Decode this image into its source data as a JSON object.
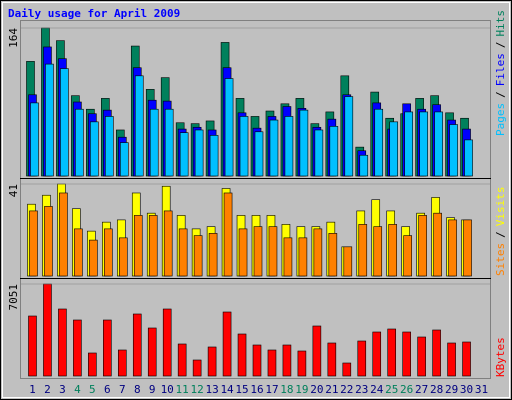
{
  "chart_data": [
    {
      "type": "bar",
      "title": "Daily usage for April 2009",
      "legend_separator": "/",
      "ylim": [
        0,
        164
      ],
      "yticks": [
        164
      ],
      "series": [
        {
          "name": "Hits",
          "color": "#00805c",
          "values": [
            127,
            164,
            150,
            89,
            74,
            86,
            51,
            144,
            96,
            109,
            59,
            58,
            61,
            148,
            86,
            66,
            72,
            80,
            86,
            58,
            71,
            111,
            32,
            93,
            64,
            69,
            86,
            89,
            70,
            64,
            null
          ]
        },
        {
          "name": "Files",
          "color": "#0000ff",
          "values": [
            90,
            143,
            130,
            82,
            69,
            73,
            43,
            120,
            84,
            83,
            52,
            54,
            51,
            120,
            70,
            53,
            66,
            77,
            75,
            54,
            63,
            90,
            28,
            81,
            52,
            80,
            74,
            79,
            62,
            52,
            null
          ]
        },
        {
          "name": "Pages",
          "color": "#00c0ff",
          "values": [
            81,
            124,
            119,
            74,
            60,
            66,
            37,
            111,
            74,
            74,
            48,
            51,
            45,
            108,
            66,
            49,
            62,
            66,
            73,
            51,
            55,
            88,
            23,
            74,
            60,
            71,
            71,
            71,
            57,
            40,
            null
          ]
        }
      ]
    },
    {
      "type": "bar",
      "legend_separator": "/",
      "ylim": [
        0,
        41
      ],
      "yticks": [
        41
      ],
      "series": [
        {
          "name": "Visits",
          "color": "#ffff00",
          "values": [
            32,
            36,
            41,
            30,
            20,
            24,
            25,
            37,
            28,
            40,
            27,
            21,
            22,
            39,
            27,
            27,
            27,
            23,
            22,
            22,
            24,
            13,
            29,
            34,
            29,
            22,
            28,
            35,
            26,
            25,
            null
          ]
        },
        {
          "name": "Sites",
          "color": "#ff8000",
          "values": [
            29,
            31,
            37,
            21,
            16,
            21,
            17,
            27,
            27,
            29,
            21,
            18,
            19,
            37,
            21,
            22,
            22,
            17,
            17,
            21,
            19,
            13,
            23,
            22,
            23,
            18,
            27,
            28,
            25,
            25,
            null
          ]
        }
      ]
    },
    {
      "type": "bar",
      "ylim": [
        0,
        7051
      ],
      "yticks": [
        7051
      ],
      "categories": [
        "1",
        "2",
        "3",
        "4",
        "5",
        "6",
        "7",
        "8",
        "9",
        "10",
        "11",
        "12",
        "13",
        "14",
        "15",
        "16",
        "17",
        "18",
        "19",
        "20",
        "21",
        "22",
        "23",
        "24",
        "25",
        "26",
        "27",
        "28",
        "29",
        "30",
        "31"
      ],
      "category_colors": [
        "#000080",
        "#000080",
        "#000080",
        "#00805c",
        "#00805c",
        "#000080",
        "#000080",
        "#000080",
        "#000080",
        "#000080",
        "#00805c",
        "#00805c",
        "#000080",
        "#000080",
        "#000080",
        "#000080",
        "#000080",
        "#00805c",
        "#00805c",
        "#000080",
        "#000080",
        "#000080",
        "#000080",
        "#000080",
        "#00805c",
        "#00805c",
        "#000080",
        "#000080",
        "#000080",
        "#000080",
        "#000080"
      ],
      "series": [
        {
          "name": "KBytes",
          "color": "#ff0000",
          "values": [
            4598,
            7051,
            5135,
            4292,
            1763,
            4292,
            1993,
            4752,
            3679,
            5135,
            2453,
            1226,
            2223,
            4905,
            3219,
            2376,
            1993,
            2376,
            1916,
            3832,
            2529,
            996,
            2682,
            3372,
            3602,
            3372,
            2989,
            3526,
            2529,
            2606,
            null
          ]
        }
      ]
    }
  ]
}
